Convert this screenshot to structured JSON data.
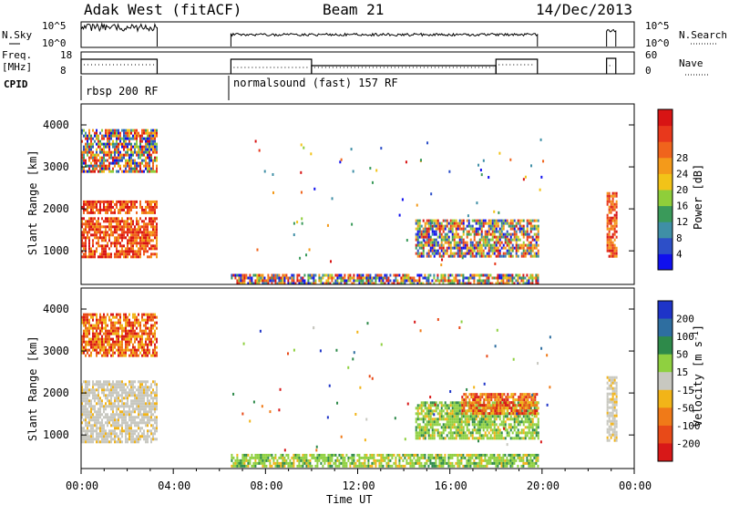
{
  "header": {
    "station": "Adak West (fitACF)",
    "beam": "Beam 21",
    "date": "14/Dec/2013"
  },
  "top_panel": {
    "left_label": "N.Sky",
    "right_label": "N.Search",
    "left_ticks": [
      "10^5",
      "10^0"
    ],
    "right_ticks": [
      "10^5",
      "10^0"
    ]
  },
  "freq_panel": {
    "left_label_line1": "Freq.",
    "left_label_line2": "[MHz]",
    "right_label": "Nave",
    "left_ticks": [
      "18",
      "8"
    ],
    "right_ticks": [
      "60",
      "0"
    ]
  },
  "cpid_panel": {
    "label": "CPID",
    "modes": [
      "rbsp 200 RF",
      "normalsound (fast) 157 RF"
    ]
  },
  "xaxis": {
    "label": "Time UT",
    "ticks": [
      "00:00",
      "04:00",
      "08:00",
      "12:00",
      "16:00",
      "20:00",
      "00:00"
    ]
  },
  "chart_data": [
    {
      "type": "heatmap",
      "name": "power",
      "ylabel": "Slant Range [km]",
      "yticks": [
        "1000",
        "2000",
        "3000",
        "4000"
      ],
      "ylim": [
        200,
        4500
      ],
      "xlim_hours": [
        0,
        24
      ],
      "colorbar": {
        "label": "Power [dB]",
        "ticks": [
          "4",
          "8",
          "12",
          "16",
          "20",
          "24",
          "28"
        ],
        "colors": [
          "#1010ee",
          "#2d4fc8",
          "#3f8fa6",
          "#3a9a5a",
          "#8fce3a",
          "#f2c318",
          "#f49a1a",
          "#f0641c",
          "#e8381c",
          "#d81414"
        ]
      },
      "regions": [
        {
          "t": [
            0.0,
            3.3
          ],
          "r": [
            850,
            1800
          ],
          "level": "high"
        },
        {
          "t": [
            0.0,
            3.3
          ],
          "r": [
            1900,
            2200
          ],
          "level": "high"
        },
        {
          "t": [
            0.0,
            3.3
          ],
          "r": [
            2900,
            3900
          ],
          "level": "mixed"
        },
        {
          "t": [
            6.5,
            19.8
          ],
          "r": [
            250,
            450
          ],
          "level": "mixed"
        },
        {
          "t": [
            14.5,
            19.8
          ],
          "r": [
            850,
            1750
          ],
          "level": "mixed"
        },
        {
          "t": [
            22.8,
            23.2
          ],
          "r": [
            900,
            2400
          ],
          "level": "high"
        }
      ]
    },
    {
      "type": "heatmap",
      "name": "velocity",
      "ylabel": "Slant Range [km]",
      "yticks": [
        "1000",
        "2000",
        "3000",
        "4000"
      ],
      "ylim": [
        200,
        4500
      ],
      "xlim_hours": [
        0,
        24
      ],
      "colorbar": {
        "label": "Velocity [m s^-1]",
        "ticks": [
          "200",
          "100",
          "50",
          "15",
          "-15",
          "-50",
          "-100",
          "-200"
        ],
        "colors": [
          "#1e34c8",
          "#2e6ea0",
          "#2e8a4a",
          "#8fd040",
          "#c8c8c0",
          "#f2b418",
          "#f07a18",
          "#e84a18",
          "#d81818"
        ]
      },
      "regions": [
        {
          "t": [
            0.0,
            3.3
          ],
          "r": [
            850,
            2300
          ],
          "level": "ground"
        },
        {
          "t": [
            0.0,
            3.3
          ],
          "r": [
            2900,
            3900
          ],
          "level": "negative"
        },
        {
          "t": [
            6.5,
            19.8
          ],
          "r": [
            250,
            550
          ],
          "level": "positive"
        },
        {
          "t": [
            14.5,
            19.8
          ],
          "r": [
            950,
            1800
          ],
          "level": "positive"
        },
        {
          "t": [
            16.5,
            19.8
          ],
          "r": [
            1500,
            2000
          ],
          "level": "negative"
        },
        {
          "t": [
            22.8,
            23.2
          ],
          "r": [
            900,
            2400
          ],
          "level": "ground"
        }
      ]
    }
  ]
}
